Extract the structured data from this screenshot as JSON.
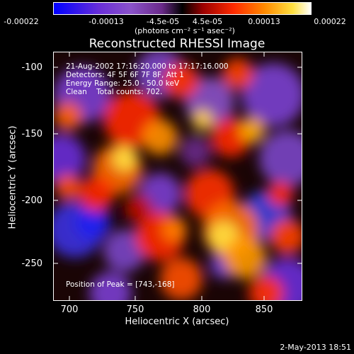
{
  "colorbar": {
    "ticks": [
      "-0.00022",
      "-0.00013",
      "-4.5e-05",
      "4.5e-05",
      "0.00013",
      "0.00022"
    ],
    "units": "(photons cm⁻² s⁻¹ asec⁻²)",
    "gradient": [
      "#0000ff",
      "#6a2fd8",
      "#8a52c9",
      "#6a2a8a",
      "#000000",
      "#9a0000",
      "#ff2a00",
      "#ff8a00",
      "#ffe040",
      "#ffffff"
    ]
  },
  "title": "Reconstructed RHESSI Image",
  "info": {
    "time": "21-Aug-2002 17:16:20.000 to 17:17:16.000",
    "detectors": "Detectors: 4F 5F 6F 7F 8F, Att 1",
    "energy": "Energy Range: 25.0 - 50.0 keV",
    "method": "Clean    Total counts: 702.",
    "peak": "Position of Peak = [743,-168]"
  },
  "axes": {
    "xlabel": "Heliocentric X (arcsec)",
    "ylabel": "Heliocentric Y (arcsec)",
    "xticks": [
      "700",
      "750",
      "800",
      "850"
    ],
    "yticks": [
      "-100",
      "-150",
      "-200",
      "-250"
    ]
  },
  "footer": "2-May-2013 18:51"
}
